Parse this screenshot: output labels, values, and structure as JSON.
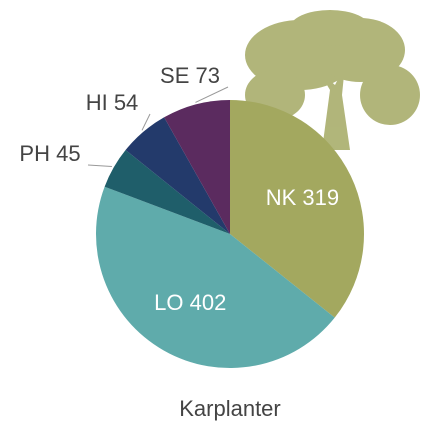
{
  "chart_data": {
    "type": "pie",
    "title": "Karplanter",
    "categories": [
      "NK",
      "LO",
      "PH",
      "HI",
      "SE"
    ],
    "values": [
      319,
      402,
      45,
      54,
      73
    ],
    "colors": [
      "#a3a85f",
      "#5fabab",
      "#1f5e6a",
      "#233a6b",
      "#5b2b5f"
    ]
  }
}
